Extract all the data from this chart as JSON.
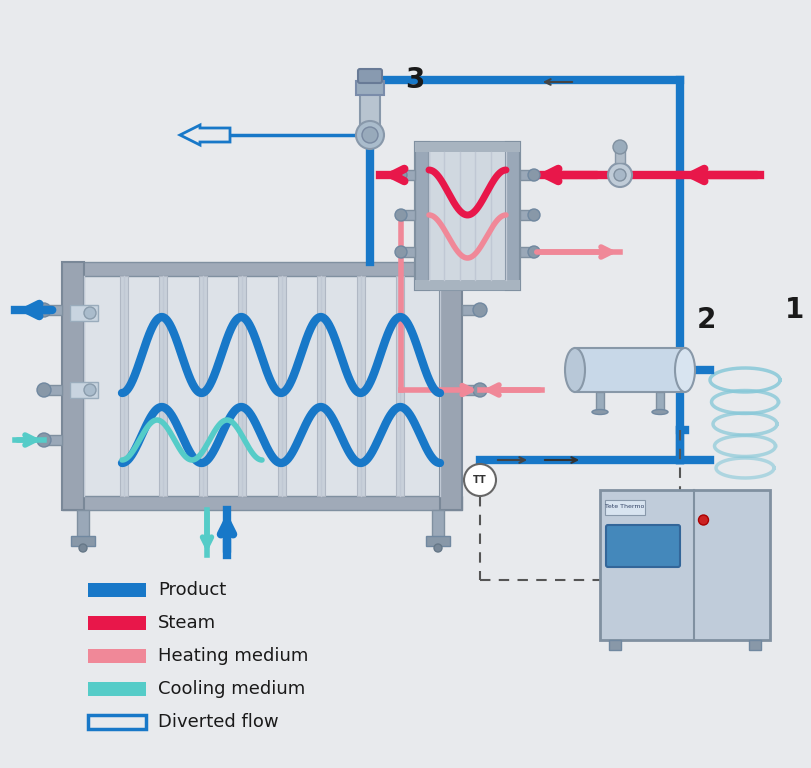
{
  "bg_color": "#e8eaed",
  "product_color": "#1878c8",
  "steam_color": "#e8174a",
  "heating_color": "#f08898",
  "cooling_color": "#55ccc8",
  "text_color": "#1a1a1a",
  "legend_labels": [
    "Product",
    "Steam",
    "Heating medium",
    "Cooling medium",
    "Diverted flow"
  ],
  "label_1": "1",
  "label_2": "2",
  "label_3": "3",
  "figsize": [
    8.11,
    7.68
  ],
  "dpi": 100,
  "lw_thick": 6,
  "lw_med": 4,
  "lw_thin": 2.5
}
